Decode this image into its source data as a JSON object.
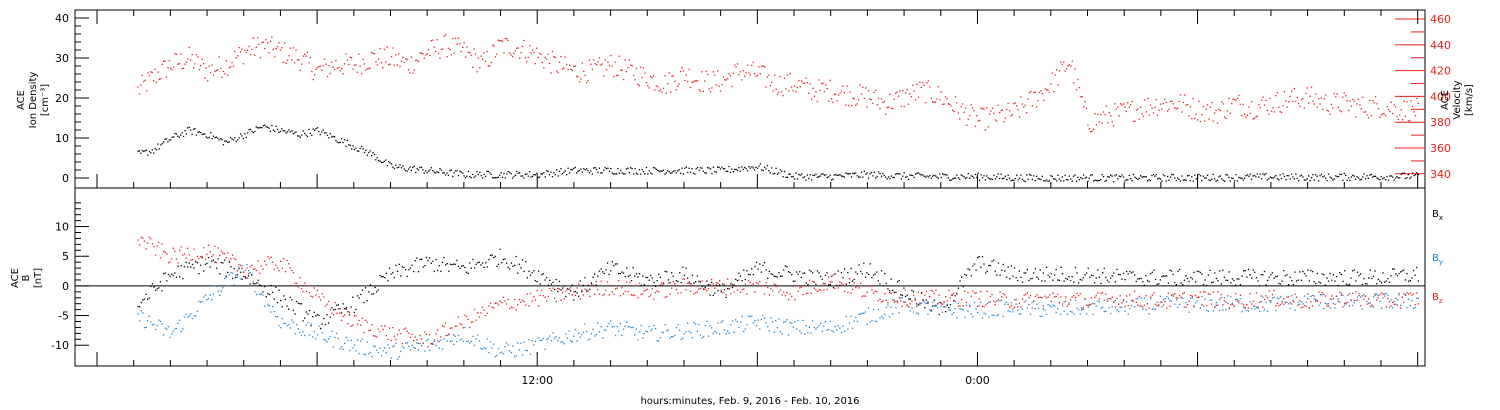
{
  "footer": {
    "time_caption": "hours:minutes, Feb.  9, 2016 - Feb. 10, 2016"
  },
  "colors": {
    "black": "#000000",
    "red": "#e8201c",
    "blue": "#1f86d8"
  },
  "x_ticks": [
    {
      "label": "12:00",
      "hour": 12
    },
    {
      "label": "0:00",
      "hour": 24
    }
  ],
  "chart_data": [
    {
      "type": "scatter",
      "panel": "top",
      "left_axis": {
        "label_lines": [
          "ACE",
          "Ion Density",
          "[cm⁻³]"
        ],
        "ylim": [
          -2.5,
          42
        ],
        "ticks": [
          0,
          10,
          20,
          30,
          40
        ]
      },
      "right_axis": {
        "label_lines": [
          "ACE",
          "Velocity",
          "[km/s]"
        ],
        "ylim": [
          329,
          467
        ],
        "ticks": [
          340,
          360,
          380,
          400,
          420,
          440,
          460
        ],
        "color": "red"
      },
      "x_hours_range": [
        1.1,
        37.0
      ],
      "series": [
        {
          "axis": "left",
          "color": "black",
          "x": [
            1.1,
            1.5,
            2.0,
            2.5,
            3.0,
            3.5,
            4.0,
            4.5,
            5.0,
            5.5,
            6.0,
            6.5,
            7.0,
            7.5,
            8.0,
            9.0,
            10,
            11,
            12,
            13,
            14,
            15,
            16,
            17,
            18,
            19,
            20,
            21,
            22,
            23,
            24,
            25,
            26,
            27,
            28,
            29,
            30,
            31,
            32,
            33,
            34,
            35,
            36
          ],
          "y": [
            6,
            7,
            10,
            12,
            11,
            9,
            11,
            13,
            12,
            11,
            12,
            10,
            8,
            6,
            3,
            2,
            1,
            1,
            1,
            2,
            2,
            2,
            2,
            2,
            3,
            0.5,
            0.5,
            1,
            0.6,
            0.5,
            0.5,
            0.2,
            0.1,
            0.2,
            0.1,
            0.2,
            0.2,
            0.3,
            0.4,
            0.3,
            0.4,
            0.5,
            0.6
          ]
        },
        {
          "axis": "right",
          "color": "red",
          "x": [
            1.1,
            1.5,
            2.0,
            2.5,
            3.0,
            3.5,
            4.0,
            4.5,
            5.0,
            5.5,
            6.0,
            6.5,
            7.0,
            7.5,
            8.0,
            8.5,
            9.0,
            9.5,
            10,
            10.5,
            11,
            11.5,
            12,
            12.5,
            13,
            13.5,
            14,
            14.5,
            15,
            15.5,
            16,
            16.5,
            17,
            17.5,
            18,
            18.5,
            19,
            19.5,
            20,
            20.5,
            21,
            21.5,
            22,
            22.5,
            23,
            23.5,
            24,
            24.5,
            25,
            25.5,
            26,
            26.5,
            27,
            27.5,
            28,
            28.5,
            29,
            29.5,
            30,
            30.5,
            31,
            31.5,
            32,
            32.5,
            33,
            33.5,
            34,
            34.5,
            35,
            35.5,
            36
          ],
          "y": [
            405,
            415,
            425,
            430,
            420,
            425,
            435,
            440,
            435,
            430,
            420,
            425,
            425,
            430,
            430,
            425,
            435,
            440,
            435,
            425,
            440,
            438,
            432,
            425,
            420,
            420,
            425,
            420,
            415,
            410,
            418,
            412,
            412,
            420,
            418,
            410,
            410,
            405,
            405,
            402,
            400,
            395,
            400,
            405,
            400,
            390,
            382,
            385,
            388,
            398,
            410,
            428,
            380,
            385,
            388,
            392,
            395,
            395,
            390,
            388,
            395,
            392,
            395,
            398,
            400,
            395,
            395,
            392,
            393,
            390,
            390
          ]
        }
      ]
    },
    {
      "type": "scatter",
      "panel": "bottom",
      "left_axis": {
        "label_lines": [
          "ACE",
          "B",
          "[nT]"
        ],
        "ylim": [
          -13.5,
          16.5
        ],
        "ticks": [
          -10,
          -5,
          0,
          5,
          10
        ],
        "zero_line": true
      },
      "legend": [
        {
          "label": "Bx",
          "color": "black"
        },
        {
          "label": "By",
          "color": "blue"
        },
        {
          "label": "Bz",
          "color": "red"
        }
      ],
      "x_hours_range": [
        1.1,
        37.0
      ],
      "series": [
        {
          "name": "Bx",
          "color": "black",
          "x": [
            1.1,
            2,
            3,
            4,
            5,
            6,
            7,
            8,
            9,
            10,
            11,
            12,
            13,
            14,
            15,
            16,
            17,
            18,
            19,
            20,
            21,
            22,
            23,
            24,
            25,
            26,
            27,
            28,
            29,
            30,
            31,
            32,
            33,
            34,
            35,
            36
          ],
          "y": [
            -3,
            2,
            4,
            2,
            -2,
            -6,
            -3,
            2,
            4,
            3,
            5,
            2,
            -1,
            3,
            1,
            2,
            -1,
            3,
            2,
            1,
            3,
            -1,
            -4,
            4,
            2,
            2,
            2,
            1.5,
            1.5,
            1.5,
            1.5,
            1.5,
            1.5,
            1.5,
            1.5,
            2
          ]
        },
        {
          "name": "By",
          "color": "blue",
          "x": [
            1.1,
            2,
            3,
            4,
            5,
            6,
            7,
            8,
            9,
            10,
            11,
            12,
            13,
            14,
            15,
            16,
            17,
            18,
            19,
            20,
            21,
            22,
            23,
            24,
            25,
            26,
            27,
            28,
            29,
            30,
            31,
            32,
            33,
            34,
            35,
            36
          ],
          "y": [
            -5,
            -8,
            -2,
            3,
            -6,
            -8,
            -10,
            -11,
            -10,
            -8,
            -11,
            -10,
            -8,
            -7,
            -8,
            -7.5,
            -7,
            -6,
            -7,
            -7,
            -5,
            -3,
            -4,
            -4,
            -3.5,
            -4,
            -3.5,
            -3.5,
            -3,
            -3,
            -3,
            -3,
            -2.5,
            -2.5,
            -2.5,
            -2.5
          ]
        },
        {
          "name": "Bz",
          "color": "red",
          "x": [
            1.1,
            2,
            3,
            4,
            5,
            6,
            7,
            8,
            9,
            10,
            11,
            12,
            13,
            14,
            15,
            16,
            17,
            18,
            19,
            20,
            21,
            22,
            23,
            24,
            25,
            26,
            27,
            28,
            29,
            30,
            31,
            32,
            33,
            34,
            35,
            36
          ],
          "y": [
            8,
            5,
            6,
            3,
            4,
            -2,
            -6,
            -8,
            -9,
            -6,
            -3,
            -2,
            -1,
            0,
            -1,
            0,
            0,
            0,
            -1,
            1,
            -1,
            -2,
            -2,
            -2,
            -2.5,
            -2,
            -2.5,
            -2,
            -2.5,
            -2,
            -2.5,
            -2,
            -2.5,
            -2,
            -2.5,
            -2
          ]
        }
      ]
    }
  ]
}
